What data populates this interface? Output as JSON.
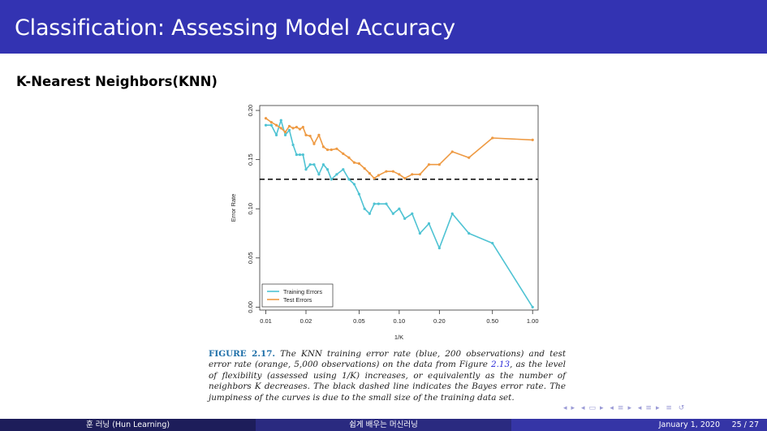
{
  "header": {
    "title": "Classification: Assessing Model Accuracy"
  },
  "section": {
    "heading": "K-Nearest Neighbors(KNN)"
  },
  "colors": {
    "title_bar": "#3333b2",
    "training": "#4fc3d3",
    "test": "#ee9a43",
    "bayes": "#000000"
  },
  "chart_data": {
    "type": "line",
    "xscale": "log",
    "xlabel": "1/K",
    "ylabel": "Error Rate",
    "xlim": [
      0.009,
      1.1
    ],
    "ylim": [
      -0.003,
      0.205
    ],
    "x_ticks": [
      0.01,
      0.02,
      0.05,
      0.1,
      0.2,
      0.5,
      1.0
    ],
    "x_tick_labels": [
      "0.01",
      "0.02",
      "0.05",
      "0.10",
      "0.20",
      "0.50",
      "1.00"
    ],
    "y_ticks": [
      0.0,
      0.05,
      0.1,
      0.15,
      0.2
    ],
    "y_tick_labels": [
      "0.00",
      "0.05",
      "0.10",
      "0.15",
      "0.20"
    ],
    "legend_position": "bottom-left",
    "bayes_error_rate": 0.13,
    "series": [
      {
        "name": "Training Errors",
        "x": [
          0.01,
          0.011,
          0.012,
          0.013,
          0.014,
          0.015,
          0.016,
          0.017,
          0.018,
          0.019,
          0.02,
          0.0215,
          0.023,
          0.025,
          0.027,
          0.029,
          0.031,
          0.034,
          0.038,
          0.042,
          0.046,
          0.05,
          0.055,
          0.06,
          0.065,
          0.07,
          0.08,
          0.09,
          0.1,
          0.11,
          0.125,
          0.143,
          0.167,
          0.2,
          0.25,
          0.333,
          0.5,
          1.0
        ],
        "y": [
          0.185,
          0.185,
          0.175,
          0.19,
          0.175,
          0.18,
          0.165,
          0.155,
          0.155,
          0.155,
          0.14,
          0.145,
          0.145,
          0.135,
          0.145,
          0.14,
          0.13,
          0.135,
          0.14,
          0.13,
          0.125,
          0.115,
          0.1,
          0.095,
          0.105,
          0.105,
          0.105,
          0.095,
          0.1,
          0.09,
          0.095,
          0.075,
          0.085,
          0.06,
          0.095,
          0.075,
          0.065,
          0.0
        ]
      },
      {
        "name": "Test Errors",
        "x": [
          0.01,
          0.011,
          0.012,
          0.013,
          0.014,
          0.015,
          0.016,
          0.017,
          0.018,
          0.019,
          0.02,
          0.0215,
          0.023,
          0.025,
          0.027,
          0.029,
          0.031,
          0.034,
          0.038,
          0.042,
          0.046,
          0.05,
          0.055,
          0.06,
          0.065,
          0.07,
          0.08,
          0.09,
          0.1,
          0.11,
          0.125,
          0.143,
          0.167,
          0.2,
          0.25,
          0.333,
          0.5,
          1.0
        ],
        "y": [
          0.192,
          0.188,
          0.185,
          0.182,
          0.178,
          0.184,
          0.182,
          0.183,
          0.181,
          0.183,
          0.175,
          0.174,
          0.166,
          0.175,
          0.163,
          0.16,
          0.16,
          0.161,
          0.156,
          0.152,
          0.147,
          0.146,
          0.141,
          0.136,
          0.131,
          0.134,
          0.138,
          0.138,
          0.135,
          0.131,
          0.135,
          0.135,
          0.145,
          0.145,
          0.158,
          0.152,
          0.172,
          0.17
        ]
      }
    ]
  },
  "caption": {
    "figure_label": "FIGURE 2.17.",
    "text_part1": " The KNN training error rate (blue, 200 observations) and test error rate (orange, 5,000 observations) on the data from Figure ",
    "figure_ref": "2.13",
    "text_part2": ", as the level of flexibility (assessed using 1/K) increases, or equivalently as the number of neighbors K decreases. The black dashed line indicates the Bayes error rate. The jumpiness of the curves is due to the small size of the training data set."
  },
  "footer": {
    "author": "훈 러닝 (Hun Learning)",
    "short_title": "쉽게 배우는 머신러닝",
    "date": "January 1, 2020",
    "page": "25 / 27"
  }
}
